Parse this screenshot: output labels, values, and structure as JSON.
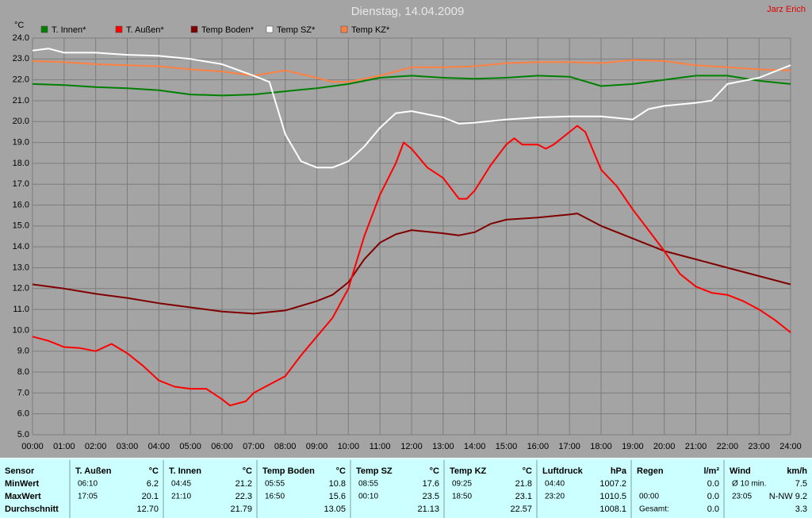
{
  "chart_data": {
    "type": "line",
    "title": "Dienstag, 14.04.2009",
    "author": "Jarz Erich",
    "y_label": "°C",
    "xlim": [
      0,
      24
    ],
    "ylim": [
      5,
      24
    ],
    "grid": true,
    "xticks": [
      {
        "value": 0,
        "label": "00:00"
      },
      {
        "value": 1,
        "label": "01:00"
      },
      {
        "value": 2,
        "label": "02:00"
      },
      {
        "value": 3,
        "label": "03:00"
      },
      {
        "value": 4,
        "label": "04:00"
      },
      {
        "value": 5,
        "label": "05:00"
      },
      {
        "value": 6,
        "label": "06:00"
      },
      {
        "value": 7,
        "label": "07:00"
      },
      {
        "value": 8,
        "label": "08:00"
      },
      {
        "value": 9,
        "label": "09:00"
      },
      {
        "value": 10,
        "label": "10:00"
      },
      {
        "value": 11,
        "label": "11:00"
      },
      {
        "value": 12,
        "label": "12:00"
      },
      {
        "value": 13,
        "label": "13:00"
      },
      {
        "value": 14,
        "label": "14:00"
      },
      {
        "value": 15,
        "label": "15:00"
      },
      {
        "value": 16,
        "label": "16:00"
      },
      {
        "value": 17,
        "label": "17:00"
      },
      {
        "value": 18,
        "label": "18:00"
      },
      {
        "value": 19,
        "label": "19:00"
      },
      {
        "value": 20,
        "label": "20:00"
      },
      {
        "value": 21,
        "label": "21:00"
      },
      {
        "value": 22,
        "label": "22:00"
      },
      {
        "value": 23,
        "label": "23:00"
      },
      {
        "value": 24,
        "label": "24:00"
      }
    ],
    "yticks": [
      {
        "value": 5,
        "label": "5.0"
      },
      {
        "value": 6,
        "label": "6.0"
      },
      {
        "value": 7,
        "label": "7.0"
      },
      {
        "value": 8,
        "label": "8.0"
      },
      {
        "value": 9,
        "label": "9.0"
      },
      {
        "value": 10,
        "label": "10.0"
      },
      {
        "value": 11,
        "label": "11.0"
      },
      {
        "value": 12,
        "label": "12.0"
      },
      {
        "value": 13,
        "label": "13.0"
      },
      {
        "value": 14,
        "label": "14.0"
      },
      {
        "value": 15,
        "label": "15.0"
      },
      {
        "value": 16,
        "label": "16.0"
      },
      {
        "value": 17,
        "label": "17.0"
      },
      {
        "value": 18,
        "label": "18.0"
      },
      {
        "value": 19,
        "label": "19.0"
      },
      {
        "value": 20,
        "label": "20.0"
      },
      {
        "value": 21,
        "label": "21.0"
      },
      {
        "value": 22,
        "label": "22.0"
      },
      {
        "value": 23,
        "label": "23.0"
      },
      {
        "value": 24,
        "label": "24.0"
      }
    ],
    "series": [
      {
        "name": "T. Innen*",
        "color": "#008000",
        "x": [
          0,
          1,
          2,
          3,
          4,
          5,
          6,
          7,
          8,
          9,
          10,
          11,
          12,
          13,
          14,
          15,
          16,
          17,
          18,
          19,
          20,
          21,
          22,
          23,
          24
        ],
        "values": [
          21.8,
          21.75,
          21.65,
          21.6,
          21.5,
          21.3,
          21.25,
          21.3,
          21.45,
          21.6,
          21.8,
          22.1,
          22.2,
          22.1,
          22.05,
          22.1,
          22.2,
          22.15,
          21.7,
          21.8,
          22.0,
          22.2,
          22.2,
          21.95,
          21.8
        ]
      },
      {
        "name": "T. Außen*",
        "color": "#ff0000",
        "x": [
          0,
          0.5,
          1,
          1.5,
          2,
          2.5,
          3,
          3.5,
          4,
          4.5,
          5,
          5.5,
          6,
          6.25,
          6.75,
          7,
          7.5,
          8,
          8.5,
          9,
          9.5,
          10,
          10.5,
          11,
          11.5,
          11.75,
          12,
          12.5,
          13,
          13.5,
          13.75,
          14,
          14.5,
          15,
          15.25,
          15.5,
          16,
          16.25,
          16.5,
          17,
          17.25,
          17.5,
          18,
          18.5,
          19,
          19.5,
          20,
          20.5,
          21,
          21.5,
          22,
          22.5,
          23,
          23.5,
          24
        ],
        "values": [
          9.7,
          9.5,
          9.2,
          9.15,
          9.0,
          9.35,
          8.9,
          8.3,
          7.6,
          7.3,
          7.2,
          7.2,
          6.7,
          6.4,
          6.6,
          7.0,
          7.4,
          7.8,
          8.8,
          9.7,
          10.6,
          12.0,
          14.5,
          16.5,
          18.0,
          19.0,
          18.7,
          17.8,
          17.3,
          16.3,
          16.3,
          16.7,
          17.9,
          18.9,
          19.2,
          18.9,
          18.9,
          18.7,
          18.9,
          19.5,
          19.8,
          19.5,
          17.7,
          16.9,
          15.8,
          14.8,
          13.8,
          12.7,
          12.1,
          11.8,
          11.7,
          11.4,
          11.0,
          10.5,
          9.9
        ]
      },
      {
        "name": "Temp Boden*",
        "color": "#800000",
        "x": [
          0,
          1,
          2,
          3,
          4,
          5,
          6,
          7,
          8,
          9,
          9.5,
          10,
          10.5,
          11,
          11.5,
          12,
          13,
          13.5,
          14,
          14.5,
          15,
          16,
          17,
          17.25,
          18,
          19,
          20,
          21,
          22,
          23,
          24
        ],
        "values": [
          12.2,
          12.0,
          11.75,
          11.55,
          11.3,
          11.1,
          10.9,
          10.8,
          10.95,
          11.4,
          11.7,
          12.3,
          13.4,
          14.2,
          14.6,
          14.8,
          14.65,
          14.55,
          14.7,
          15.1,
          15.3,
          15.4,
          15.55,
          15.6,
          15.0,
          14.4,
          13.8,
          13.4,
          13.0,
          12.6,
          12.2
        ]
      },
      {
        "name": "Temp SZ*",
        "color": "#ffffff",
        "x": [
          0,
          0.5,
          1,
          2,
          3,
          4,
          5,
          6,
          7,
          7.5,
          8,
          8.5,
          9,
          9.5,
          10,
          10.5,
          11,
          11.5,
          12,
          13,
          13.5,
          14,
          15,
          16,
          17,
          18,
          19,
          19.5,
          20,
          21,
          21.5,
          22,
          23,
          24
        ],
        "values": [
          23.4,
          23.5,
          23.3,
          23.3,
          23.2,
          23.15,
          23.0,
          22.75,
          22.2,
          21.9,
          19.4,
          18.1,
          17.8,
          17.8,
          18.1,
          18.8,
          19.7,
          20.4,
          20.5,
          20.2,
          19.9,
          19.95,
          20.1,
          20.2,
          20.25,
          20.25,
          20.1,
          20.6,
          20.75,
          20.9,
          21.0,
          21.8,
          22.1,
          22.7
        ]
      },
      {
        "name": "Temp KZ*",
        "color": "#ff8040",
        "x": [
          0,
          1,
          2,
          3,
          4,
          5,
          6,
          7,
          8,
          9,
          9.5,
          10,
          11,
          12,
          13,
          14,
          15,
          16,
          17,
          18,
          19,
          20,
          21,
          22,
          23,
          24
        ],
        "values": [
          22.9,
          22.85,
          22.75,
          22.7,
          22.65,
          22.5,
          22.4,
          22.2,
          22.45,
          22.1,
          21.9,
          21.9,
          22.2,
          22.6,
          22.6,
          22.65,
          22.8,
          22.85,
          22.85,
          22.8,
          22.95,
          22.9,
          22.7,
          22.6,
          22.5,
          22.45
        ]
      }
    ]
  },
  "table": {
    "header": "Sensor",
    "row_labels": [
      "MinWert",
      "MaxWert",
      "Durchschnitt"
    ],
    "columns": [
      {
        "name": "T. Außen",
        "unit": "°C",
        "rows": [
          [
            "06:10",
            "6.2"
          ],
          [
            "17:05",
            "20.1"
          ],
          [
            null,
            "12.70"
          ]
        ]
      },
      {
        "name": "T. Innen",
        "unit": "°C",
        "rows": [
          [
            "04:45",
            "21.2"
          ],
          [
            "21:10",
            "22.3"
          ],
          [
            null,
            "21.79"
          ]
        ]
      },
      {
        "name": "Temp Boden",
        "unit": "°C",
        "rows": [
          [
            "05:55",
            "10.8"
          ],
          [
            "16:50",
            "15.6"
          ],
          [
            null,
            "13.05"
          ]
        ]
      },
      {
        "name": "Temp SZ",
        "unit": "°C",
        "rows": [
          [
            "08:55",
            "17.6"
          ],
          [
            "00:10",
            "23.5"
          ],
          [
            null,
            "21.13"
          ]
        ]
      },
      {
        "name": "Temp KZ",
        "unit": "°C",
        "rows": [
          [
            "09:25",
            "21.8"
          ],
          [
            "18:50",
            "23.1"
          ],
          [
            null,
            "22.57"
          ]
        ]
      },
      {
        "name": "Luftdruck",
        "unit": "hPa",
        "rows": [
          [
            "04:40",
            "1007.2"
          ],
          [
            "23:20",
            "1010.5"
          ],
          [
            null,
            "1008.1"
          ]
        ]
      },
      {
        "name": "Regen",
        "unit": "l/m²",
        "rows": [
          [
            null,
            "0.0"
          ],
          [
            "00:00",
            "0.0"
          ],
          [
            "Gesamt:",
            "0.0"
          ]
        ]
      },
      {
        "name": "Wind",
        "unit": "km/h",
        "rows": [
          [
            "Ø 10 min.",
            "7.5"
          ],
          [
            "23:05",
            "N-NW 9.2"
          ],
          [
            null,
            "3.3"
          ]
        ]
      }
    ]
  }
}
